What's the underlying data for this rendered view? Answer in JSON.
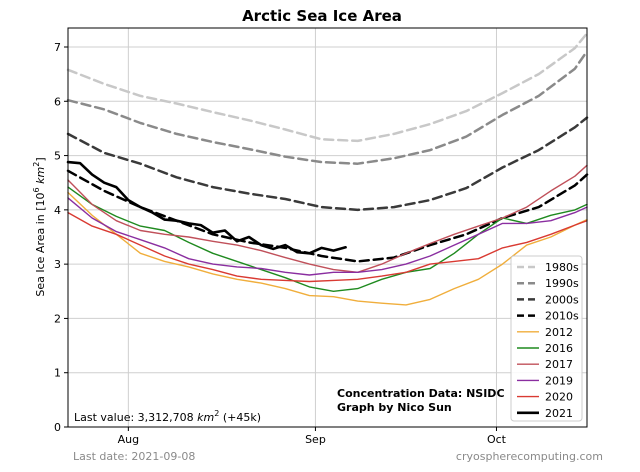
{
  "chart_data": {
    "type": "line",
    "title": "Arctic Sea Ice Area",
    "ylabel_main": "Sea Ice Area in [10",
    "ylabel_sup": "6",
    "ylabel_unit": " km",
    "ylabel_unit_sup": "2",
    "ylabel_end": "]",
    "ylim": [
      0,
      7.35
    ],
    "yticks": [
      "0",
      "1",
      "2",
      "3",
      "4",
      "5",
      "6",
      "7"
    ],
    "xlim": [
      0,
      86
    ],
    "xticks": [
      {
        "label": "Aug",
        "x": 10
      },
      {
        "label": "Sep",
        "x": 41
      },
      {
        "label": "Oct",
        "x": 71
      }
    ],
    "grid": true,
    "legend_position": "lower right",
    "series": [
      {
        "name": "1980s",
        "color": "#c8c8c8",
        "dash": "dashed",
        "width": 2.5,
        "x": [
          0,
          6,
          12,
          18,
          24,
          30,
          36,
          42,
          48,
          54,
          60,
          66,
          72,
          78,
          84,
          86
        ],
        "y": [
          6.58,
          6.32,
          6.1,
          5.96,
          5.8,
          5.65,
          5.48,
          5.3,
          5.27,
          5.4,
          5.58,
          5.82,
          6.15,
          6.5,
          6.98,
          7.25
        ]
      },
      {
        "name": "1990s",
        "color": "#8a8a8a",
        "dash": "dashed",
        "width": 2.5,
        "x": [
          0,
          6,
          12,
          18,
          24,
          30,
          36,
          42,
          48,
          54,
          60,
          66,
          72,
          78,
          84,
          86
        ],
        "y": [
          6.02,
          5.85,
          5.6,
          5.4,
          5.25,
          5.12,
          4.98,
          4.88,
          4.85,
          4.95,
          5.1,
          5.35,
          5.75,
          6.1,
          6.6,
          6.92
        ]
      },
      {
        "name": "2000s",
        "color": "#3a3a3a",
        "dash": "dashed",
        "width": 2.5,
        "x": [
          0,
          6,
          12,
          18,
          24,
          30,
          36,
          42,
          48,
          54,
          60,
          66,
          72,
          78,
          84,
          86
        ],
        "y": [
          5.4,
          5.05,
          4.85,
          4.6,
          4.42,
          4.3,
          4.2,
          4.05,
          4.0,
          4.05,
          4.18,
          4.4,
          4.78,
          5.1,
          5.52,
          5.7
        ]
      },
      {
        "name": "2010s",
        "color": "#000000",
        "dash": "dashed",
        "width": 2.5,
        "x": [
          0,
          6,
          12,
          18,
          24,
          30,
          36,
          42,
          48,
          54,
          60,
          66,
          72,
          78,
          84,
          86
        ],
        "y": [
          4.72,
          4.35,
          4.05,
          3.8,
          3.55,
          3.4,
          3.3,
          3.15,
          3.05,
          3.12,
          3.35,
          3.55,
          3.85,
          4.05,
          4.45,
          4.65
        ]
      },
      {
        "name": "2012",
        "color": "#f0ae3c",
        "dash": "solid",
        "width": 1.4,
        "x": [
          0,
          4,
          8,
          12,
          16,
          20,
          24,
          28,
          32,
          36,
          40,
          44,
          48,
          52,
          56,
          60,
          64,
          68,
          72,
          76,
          80,
          84,
          86
        ],
        "y": [
          4.32,
          3.9,
          3.55,
          3.2,
          3.05,
          2.95,
          2.82,
          2.72,
          2.65,
          2.55,
          2.42,
          2.4,
          2.32,
          2.28,
          2.25,
          2.35,
          2.55,
          2.72,
          3.0,
          3.35,
          3.5,
          3.72,
          3.82
        ]
      },
      {
        "name": "2016",
        "color": "#1f8a1f",
        "dash": "solid",
        "width": 1.4,
        "x": [
          0,
          4,
          8,
          12,
          16,
          20,
          24,
          28,
          32,
          36,
          40,
          44,
          48,
          52,
          56,
          60,
          64,
          68,
          72,
          76,
          80,
          84,
          86
        ],
        "y": [
          4.42,
          4.1,
          3.88,
          3.7,
          3.62,
          3.4,
          3.2,
          3.05,
          2.9,
          2.75,
          2.58,
          2.5,
          2.55,
          2.72,
          2.85,
          2.92,
          3.2,
          3.55,
          3.85,
          3.75,
          3.9,
          4.0,
          4.1
        ]
      },
      {
        "name": "2017",
        "color": "#c0505a",
        "dash": "solid",
        "width": 1.4,
        "x": [
          0,
          4,
          8,
          12,
          16,
          20,
          24,
          28,
          32,
          36,
          40,
          44,
          48,
          52,
          56,
          60,
          64,
          68,
          72,
          76,
          80,
          84,
          86
        ],
        "y": [
          4.55,
          4.1,
          3.8,
          3.62,
          3.55,
          3.5,
          3.42,
          3.35,
          3.25,
          3.12,
          3.0,
          2.9,
          2.85,
          3.0,
          3.2,
          3.38,
          3.55,
          3.7,
          3.85,
          4.05,
          4.35,
          4.62,
          4.82
        ]
      },
      {
        "name": "2019",
        "color": "#8a2ea0",
        "dash": "solid",
        "width": 1.4,
        "x": [
          0,
          4,
          8,
          12,
          16,
          20,
          24,
          28,
          32,
          36,
          40,
          44,
          48,
          52,
          56,
          60,
          64,
          68,
          72,
          76,
          80,
          84,
          86
        ],
        "y": [
          4.22,
          3.85,
          3.6,
          3.45,
          3.3,
          3.1,
          3.0,
          2.95,
          2.92,
          2.85,
          2.8,
          2.85,
          2.85,
          2.9,
          3.0,
          3.15,
          3.35,
          3.55,
          3.75,
          3.75,
          3.8,
          3.95,
          4.05
        ]
      },
      {
        "name": "2020",
        "color": "#d93a32",
        "dash": "solid",
        "width": 1.4,
        "x": [
          0,
          4,
          8,
          12,
          16,
          20,
          24,
          28,
          32,
          36,
          40,
          44,
          48,
          52,
          56,
          60,
          64,
          68,
          72,
          76,
          80,
          84,
          86
        ],
        "y": [
          3.95,
          3.7,
          3.55,
          3.35,
          3.15,
          3.0,
          2.9,
          2.78,
          2.72,
          2.7,
          2.68,
          2.7,
          2.72,
          2.78,
          2.85,
          3.0,
          3.05,
          3.1,
          3.3,
          3.4,
          3.55,
          3.72,
          3.8
        ]
      },
      {
        "name": "2021",
        "color": "#000000",
        "dash": "solid",
        "width": 2.6,
        "x": [
          0,
          2,
          4,
          6,
          8,
          10,
          12,
          14,
          16,
          18,
          20,
          22,
          24,
          26,
          28,
          30,
          32,
          34,
          36,
          38,
          40,
          42,
          44,
          46
        ],
        "y": [
          4.88,
          4.86,
          4.65,
          4.5,
          4.42,
          4.18,
          4.05,
          3.95,
          3.82,
          3.8,
          3.75,
          3.72,
          3.58,
          3.62,
          3.42,
          3.5,
          3.35,
          3.28,
          3.35,
          3.22,
          3.2,
          3.3,
          3.25,
          3.31
        ]
      }
    ],
    "annotation_credit_line1": "Concentration Data: NSIDC",
    "annotation_credit_line2": "Graph by Nico Sun",
    "last_value_prefix": "Last value: 3,312,708 ",
    "last_value_unit": "km",
    "last_value_unit_sup": "2",
    "last_value_suffix": " (+45k)"
  },
  "footer": {
    "last_date": "Last date: 2021-09-08",
    "website": "cryospherecomputing.com"
  }
}
